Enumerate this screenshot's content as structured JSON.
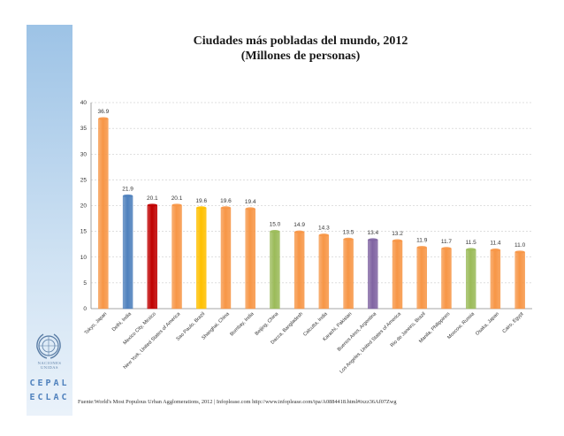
{
  "chart_data": {
    "type": "bar",
    "title": "Ciudades más pobladas del mundo, 2012",
    "subtitle": "(Millones de personas)",
    "categories": [
      "Tokyo, Japan",
      "Delhi, India",
      "Mexico City, Mexico",
      "New York, United States of America",
      "Sao Paulo, Brazil",
      "Shanghai, China",
      "Bombay, India",
      "Beijing, China",
      "Dacca, Bangladesh",
      "Calcutta, India",
      "Karachi, Pakistan",
      "Buenos Aires, Argentina",
      "Los Angeles, United States of America",
      "Rio de Janeiro, Brazil",
      "Manila, Philippines",
      "Moscow, Russia",
      "Osaka, Japan",
      "Cairo, Egypt"
    ],
    "values": [
      36.9,
      21.9,
      20.1,
      20.1,
      19.6,
      19.6,
      19.4,
      15.0,
      14.9,
      14.3,
      13.5,
      13.4,
      13.2,
      11.9,
      11.7,
      11.5,
      11.4,
      11.0
    ],
    "value_labels": [
      "36.9",
      "21.9",
      "20.1",
      "20.1",
      "19.6",
      "19.6",
      "19.4",
      "15.0",
      "14.9",
      "14.3",
      "13.5",
      "13.4",
      "13.2",
      "11.9",
      "11.7",
      "11.5",
      "11.4",
      "11.0"
    ],
    "bar_colors": [
      "#f79646",
      "#4f81bd",
      "#c00000",
      "#f79646",
      "#ffc000",
      "#f79646",
      "#f79646",
      "#9bbb59",
      "#f79646",
      "#f79646",
      "#f79646",
      "#8064a2",
      "#f79646",
      "#f79646",
      "#f79646",
      "#9bbb59",
      "#f79646",
      "#f79646"
    ],
    "yticks": [
      "0",
      "5",
      "10",
      "15",
      "20",
      "25",
      "30",
      "35",
      "40"
    ],
    "ylim": [
      0,
      40
    ],
    "grid": true,
    "legend": false
  },
  "source_text": "Fuente:World's Most Populous Urban Agglomerations, 2012 | Infoplease.com http://www.infoplease.com/ipa/A0884418.html#ixzz36Af07Zwg",
  "logo": {
    "un_text": "NACIONES UNIDAS",
    "cepal": "CEPAL",
    "eclac": "ECLAC"
  }
}
